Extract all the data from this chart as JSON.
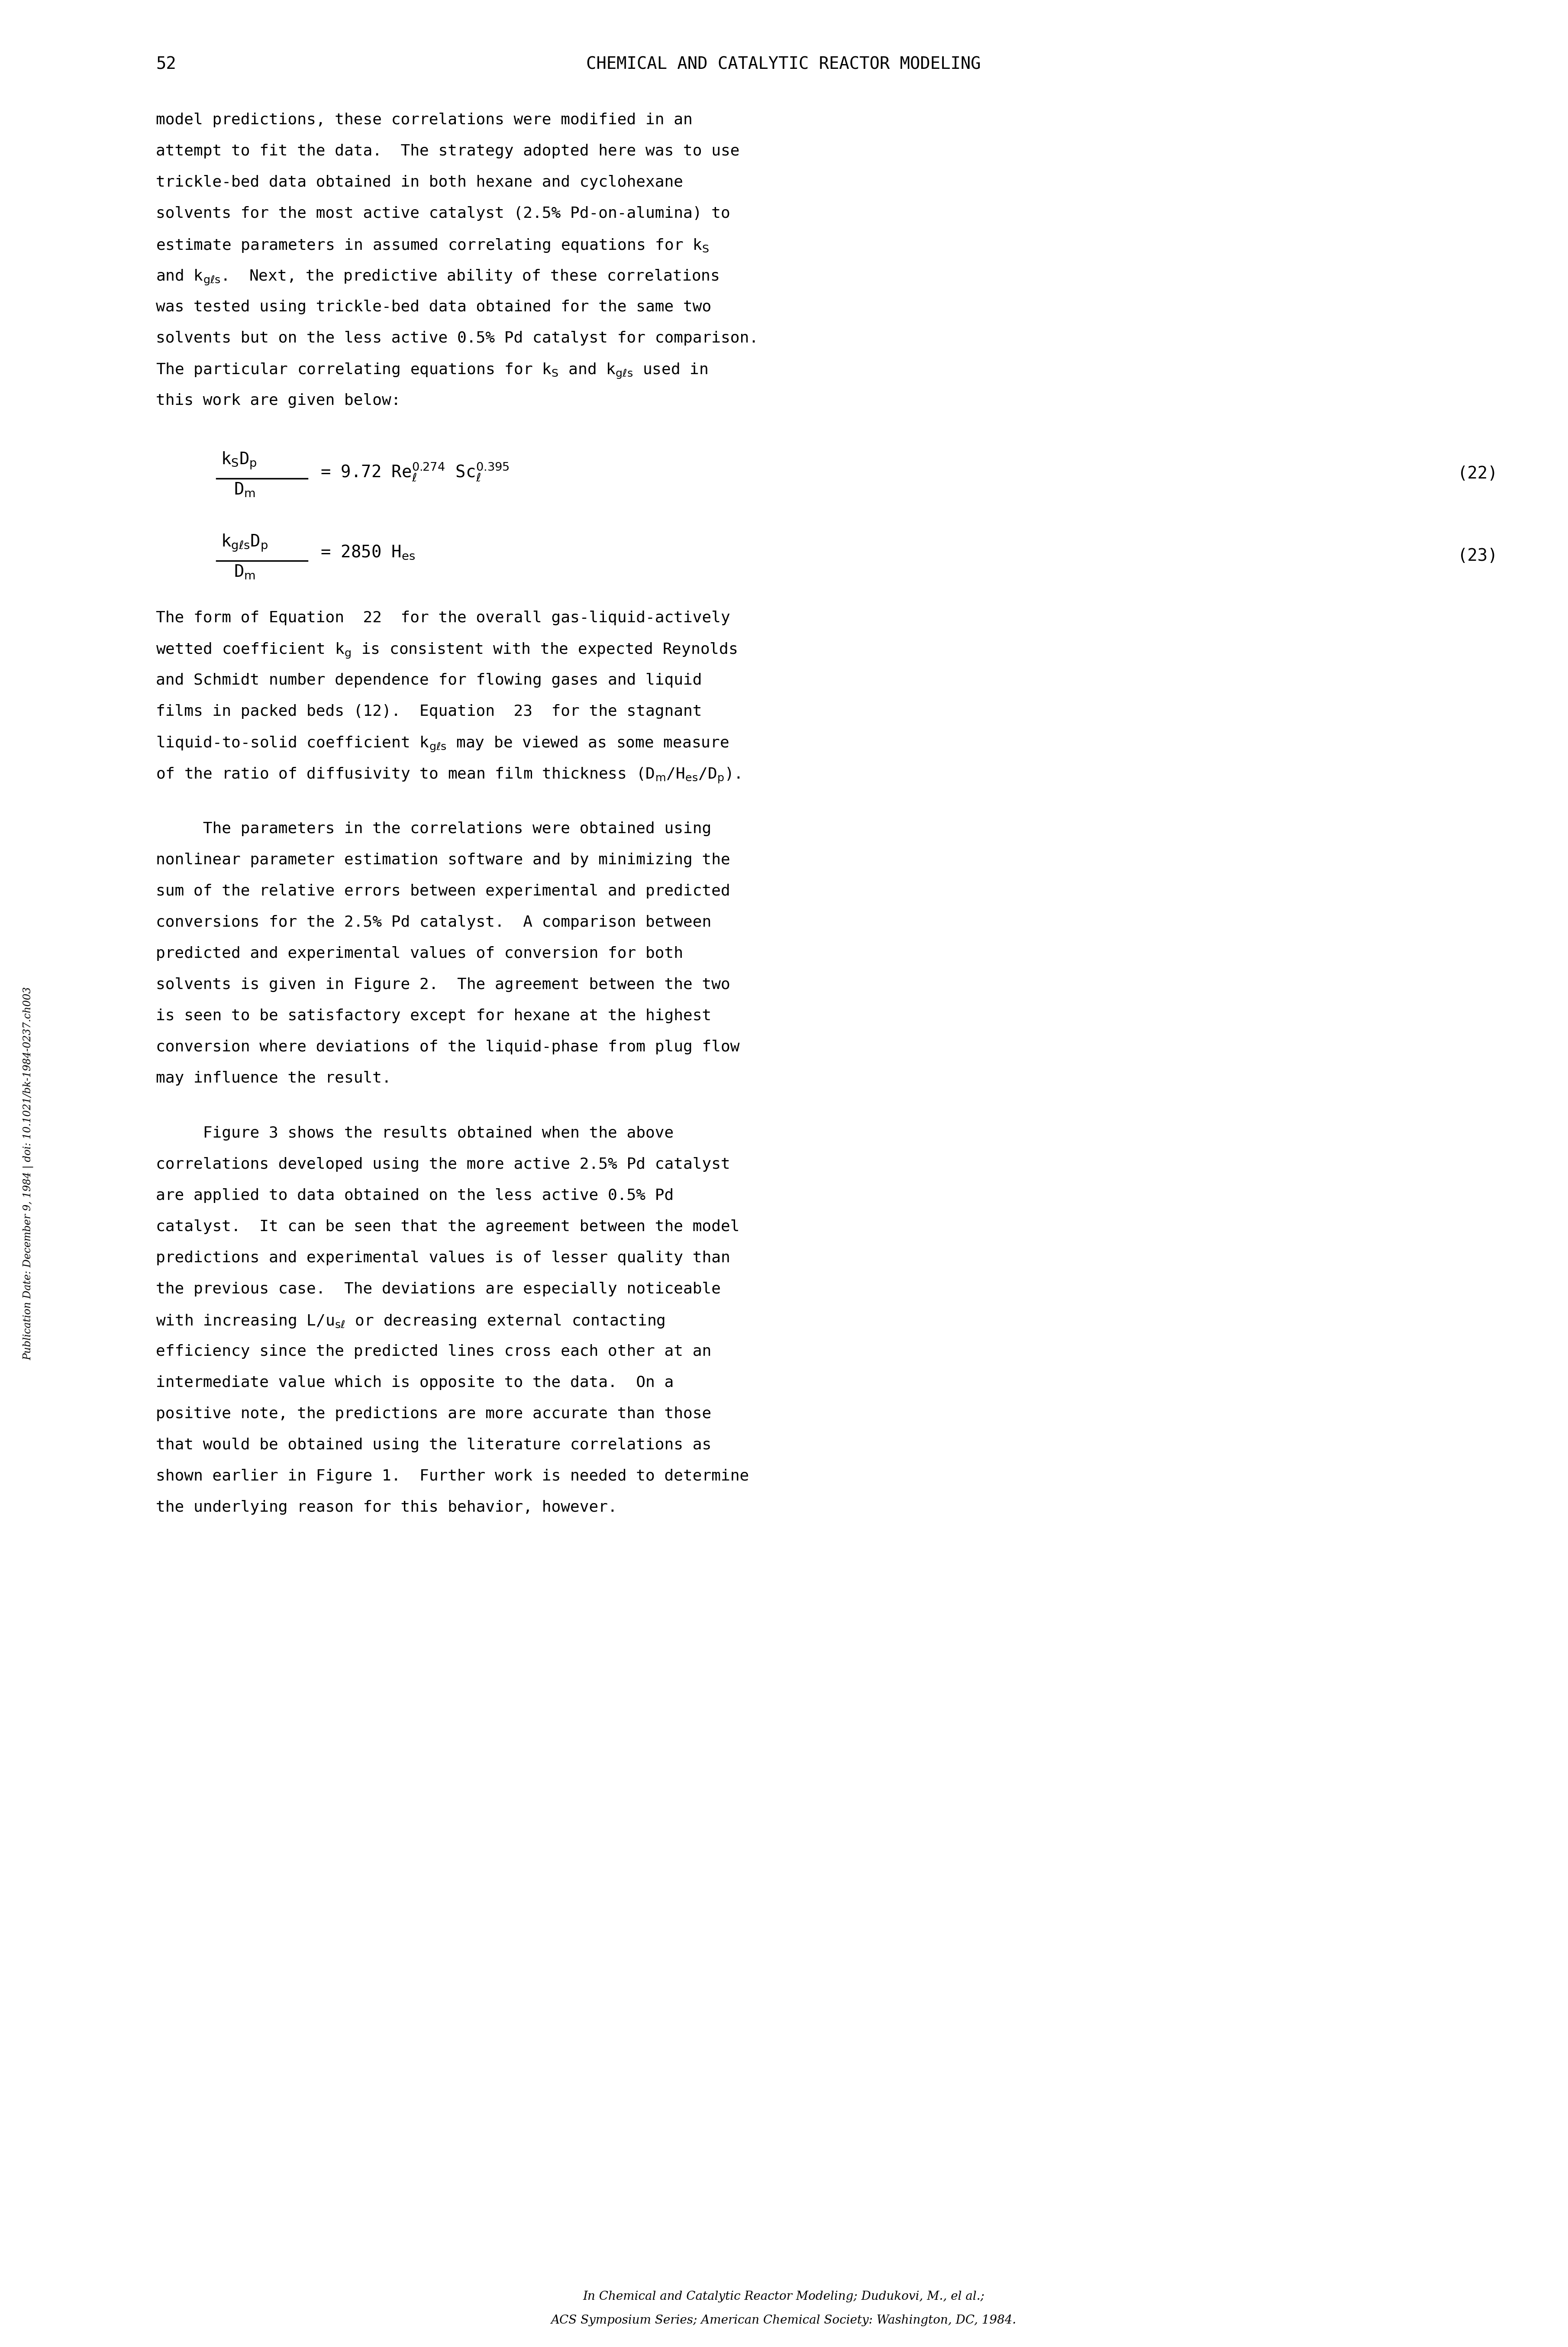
{
  "page_number": "52",
  "header": "CHEMICAL AND CATALYTIC REACTOR MODELING",
  "background_color": "#ffffff",
  "text_color": "#000000",
  "font_family": "monospace",
  "paragraph1": "model predictions, these correlations were modified in an\nattempt to fit the data.  The strategy adopted here was to use\ntrickle-bed data obtained in both hexane and cyclohexane\nsolvents for the most active catalyst (2.5% Pd-on-alumina) to\nestimate parameters in assumed correlating equations for k",
  "paragraph1_cont": "and k",
  "paragraph1_cont2": "gls",
  "paragraph1_cont3": ".  Next, the predictive ability of these correlations\nwas tested using trickle-bed data obtained for the same two\nsolvents but on the less active 0.5% Pd catalyst for comparison.\nThe particular correlating equations for k",
  "paragraph1_cont4": "s",
  "paragraph1_cont5": " and k",
  "paragraph1_cont6": "gls",
  "paragraph1_cont7": " used in\nthis work are given below:",
  "eq22_lhs_num": "k  D",
  "eq22_lhs_num2": " s  p",
  "eq22_lhs_den": "D",
  "eq22_lhs_den2": " m",
  "eq22_rhs": "= 9.72 Re",
  "eq22_rhs_exp1": "0.274",
  "eq22_rhs2": " Sc",
  "eq22_rhs_exp2": "0.395",
  "eq22_num": "(22)",
  "eq23_lhs_num": "k  D",
  "eq23_lhs_num2": "gls p",
  "eq23_lhs_den": "D",
  "eq23_lhs_den2": " m",
  "eq23_rhs": "= 2850 H",
  "eq23_rhs_sub": "es",
  "eq23_num": "(23)",
  "para_eq22": "The form of Equation  22  for the overall gas-liquid-actively\nwetted coefficient k",
  "para_eq22_sub": "g",
  "para_eq22_cont": " is consistent with the expected Reynolds\nand Schmidt number dependence for flowing gases and liquid\nfilms in packed beds (12).  Equation  23  for the stagnant\nliquid-to-solid coefficient k",
  "para_eq22_sub2": "gls",
  "para_eq22_cont2": " may be viewed as some measure\nof the ratio of diffusivity to mean film thickness (D",
  "para_eq22_sub3": "m",
  "para_eq22_cont3": "/H",
  "para_eq22_sub4": "es",
  "para_eq22_cont4": "/D",
  "para_eq22_sub5": "p",
  "para_eq22_cont5": ").",
  "para2": "     The parameters in the correlations were obtained using\nnonlinear parameter estimation software and by minimizing the\nsum of the relative errors between experimental and predicted\nconversions for the 2.5% Pd catalyst.  A comparison between\npredicted and experimental values of conversion for both\nsolvents is given in Figure 2.  The agreement between the two\nis seen to be satisfactory except for hexane at the highest\nconversion where deviations of the liquid-phase from plug flow\nmay influence the result.",
  "para3": "     Figure 3 shows the results obtained when the above\ncorrelations developed using the more active 2.5% Pd catalyst\nare applied to data obtained on the less active 0.5% Pd\ncatalyst.  It can be seen that the agreement between the model\npredictions and experimental values is of lesser quality than\nthe previous case.  The deviations are especially noticeable\nwith increasing L/u",
  "para3_sub": "sl",
  "para3_cont": " or decreasing external contacting\nefficiency since the predicted lines cross each other at an\nintermediate value which is opposite to the data.  On a\npositive note, the predictions are more accurate than those\nthat would be obtained using the literature correlations as\nshown earlier in Figure 1.  Further work is needed to determine\nthe underlying reason for this behavior, however.",
  "footer1": "In Chemical and Catalytic Reactor Modeling; Dudukovi, M., el al.;",
  "footer2": "ACS Symposium Series; American Chemical Society: Washington, DC, 1984.",
  "sidebar": "Publication Date: December 9, 1984 | doi: 10.1021/bk-1984-0237.ch003"
}
